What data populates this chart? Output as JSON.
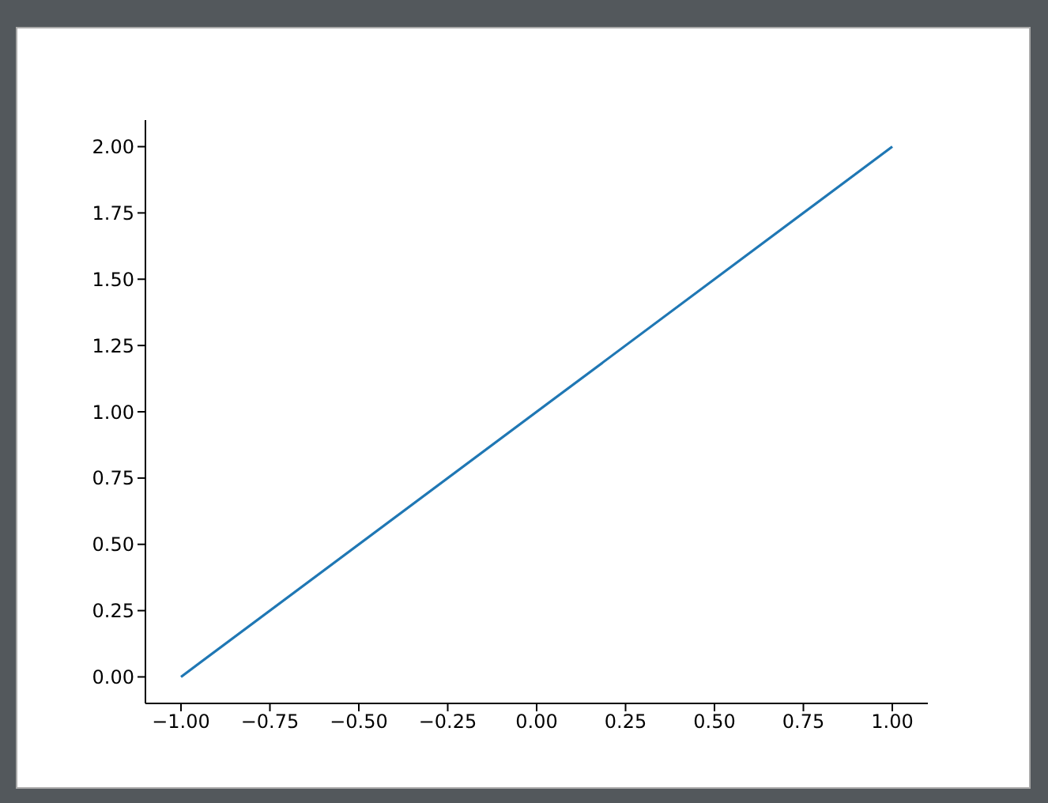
{
  "chart_data": {
    "type": "line",
    "x": [
      -1,
      1
    ],
    "series": [
      {
        "color": "#1f77b4",
        "values": [
          0,
          2
        ]
      }
    ],
    "xlim": [
      -1.1,
      1.1
    ],
    "ylim": [
      -0.1,
      2.1
    ],
    "xticks": [
      {
        "value": -1,
        "label": "−1.00"
      },
      {
        "value": -0.75,
        "label": "−0.75"
      },
      {
        "value": -0.5,
        "label": "−0.50"
      },
      {
        "value": -0.25,
        "label": "−0.25"
      },
      {
        "value": 0,
        "label": "0.00"
      },
      {
        "value": 0.25,
        "label": "0.25"
      },
      {
        "value": 0.5,
        "label": "0.50"
      },
      {
        "value": 0.75,
        "label": "0.75"
      },
      {
        "value": 1,
        "label": "1.00"
      }
    ],
    "yticks": [
      {
        "value": 0,
        "label": "0.00"
      },
      {
        "value": 0.25,
        "label": "0.25"
      },
      {
        "value": 0.5,
        "label": "0.50"
      },
      {
        "value": 0.75,
        "label": "0.75"
      },
      {
        "value": 1,
        "label": "1.00"
      },
      {
        "value": 1.25,
        "label": "1.25"
      },
      {
        "value": 1.5,
        "label": "1.50"
      },
      {
        "value": 1.75,
        "label": "1.75"
      },
      {
        "value": 2,
        "label": "2.00"
      }
    ],
    "grid": false,
    "legend": false,
    "marker": "none",
    "line_style": "solid"
  }
}
